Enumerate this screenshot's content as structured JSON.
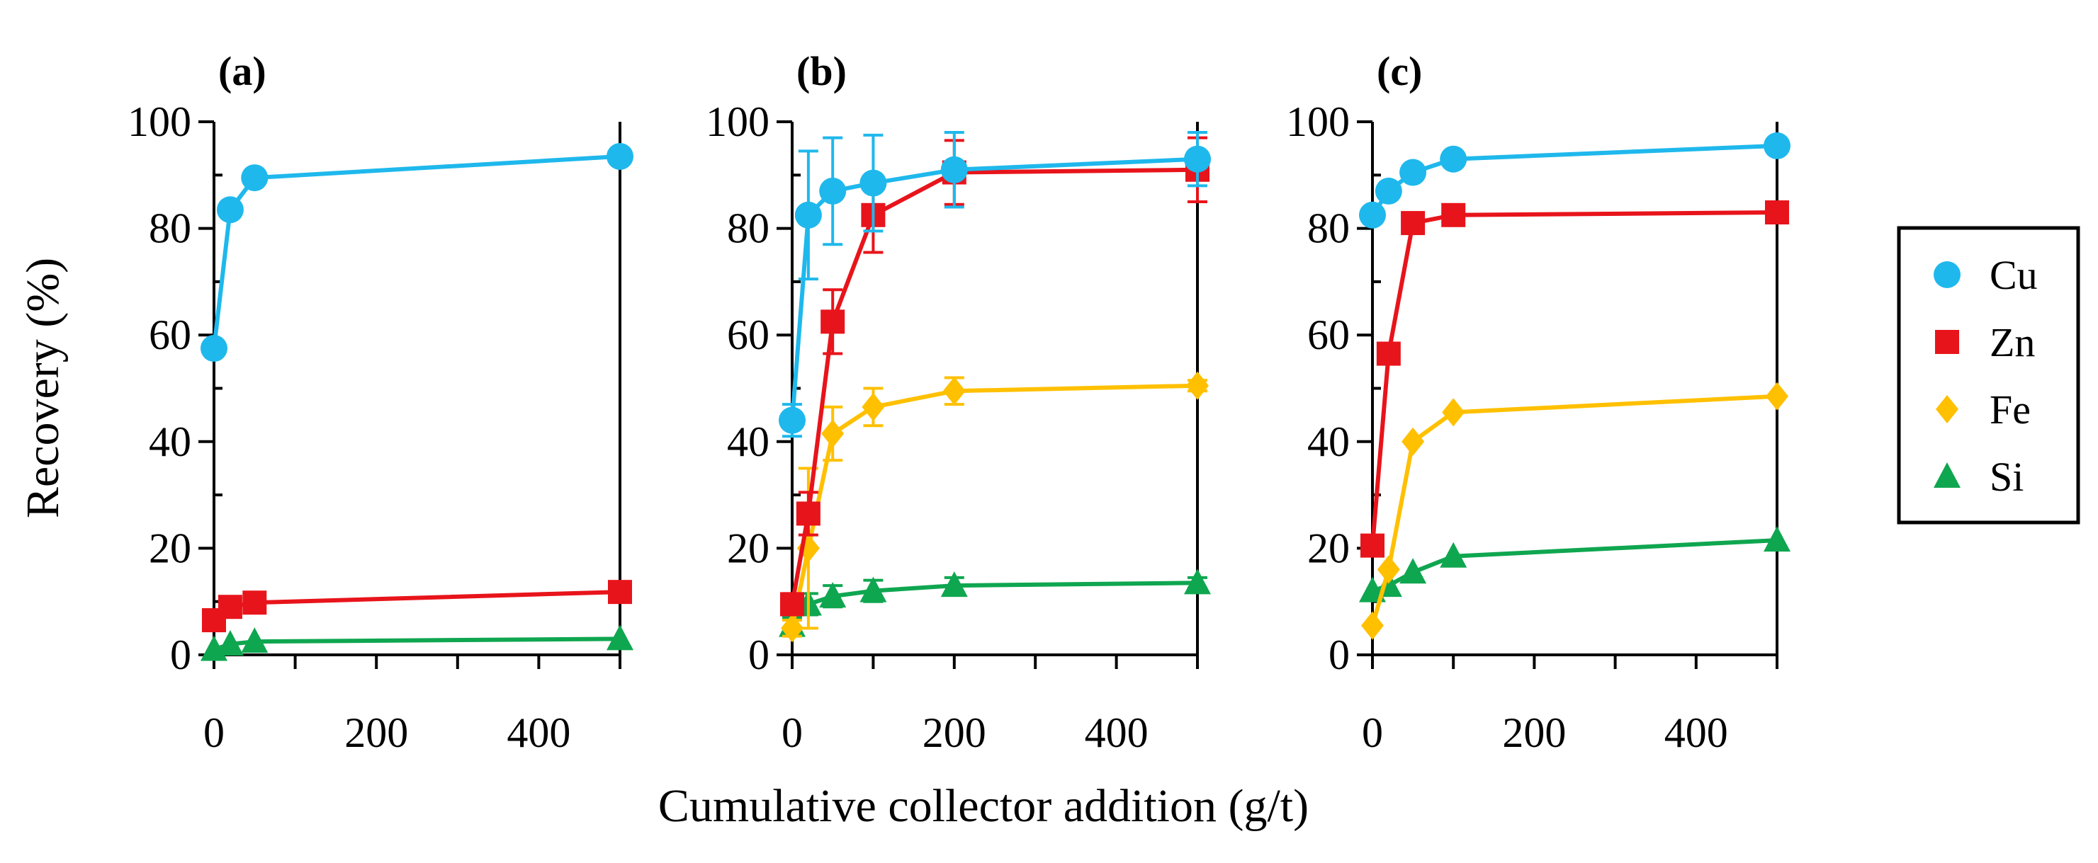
{
  "figure": {
    "ylabel": "Recovery (%)",
    "xlabel": "Cumulative collector addition (g/t)",
    "legend_location": "right",
    "legend": [
      {
        "name": "Cu",
        "marker": "circle",
        "color": "#1FB8EC"
      },
      {
        "name": "Zn",
        "marker": "square",
        "color": "#E8141B"
      },
      {
        "name": "Fe",
        "marker": "diamond",
        "color": "#FFC000"
      },
      {
        "name": "Si",
        "marker": "triangle",
        "color": "#0FA650"
      }
    ]
  },
  "chart_data": [
    {
      "type": "line",
      "title": "(a)",
      "xlabel": "Cumulative collector addition (g/t)",
      "ylabel": "Recovery (%)",
      "xlim": [
        0,
        500
      ],
      "ylim": [
        0,
        100
      ],
      "xticks": [
        0,
        200,
        400
      ],
      "yticks": [
        0,
        20,
        40,
        60,
        80,
        100
      ],
      "x": [
        0,
        20,
        50,
        500
      ],
      "series": [
        {
          "name": "Cu",
          "values": [
            57.5,
            83.5,
            89.5,
            93.5
          ]
        },
        {
          "name": "Zn",
          "values": [
            6.5,
            9.0,
            9.8,
            11.8
          ]
        },
        {
          "name": "Si",
          "values": [
            1.0,
            2.0,
            2.5,
            3.0
          ]
        }
      ]
    },
    {
      "type": "line",
      "title": "(b)",
      "xlabel": "Cumulative collector addition (g/t)",
      "ylabel": "Recovery (%)",
      "xlim": [
        0,
        500
      ],
      "ylim": [
        0,
        100
      ],
      "xticks": [
        0,
        200,
        400
      ],
      "yticks": [
        0,
        20,
        40,
        60,
        80,
        100
      ],
      "x": [
        0,
        20,
        50,
        100,
        200,
        500
      ],
      "series": [
        {
          "name": "Cu",
          "values": [
            44,
            82.5,
            87,
            88.5,
            91,
            93
          ],
          "errors": [
            3,
            12,
            10,
            9,
            7,
            5
          ]
        },
        {
          "name": "Zn",
          "values": [
            9.5,
            26.5,
            62.5,
            82.5,
            90.5,
            91
          ],
          "errors": [
            2,
            4,
            6,
            7,
            6,
            6
          ]
        },
        {
          "name": "Fe",
          "values": [
            5,
            20,
            41.5,
            46.5,
            49.5,
            50.5
          ],
          "errors": [
            1.5,
            15,
            5,
            3.5,
            2.5,
            1
          ]
        },
        {
          "name": "Si",
          "values": [
            5.5,
            9.5,
            11,
            12,
            13,
            13.5
          ],
          "errors": [
            1.5,
            2,
            2,
            2,
            1.5,
            1
          ]
        }
      ]
    },
    {
      "type": "line",
      "title": "(c)",
      "xlabel": "Cumulative collector addition (g/t)",
      "ylabel": "Recovery (%)",
      "xlim": [
        0,
        500
      ],
      "ylim": [
        0,
        100
      ],
      "xticks": [
        0,
        200,
        400
      ],
      "yticks": [
        0,
        20,
        40,
        60,
        80,
        100
      ],
      "x": [
        0,
        20,
        50,
        100,
        500
      ],
      "series": [
        {
          "name": "Cu",
          "values": [
            82.5,
            87,
            90.5,
            93,
            95.5
          ]
        },
        {
          "name": "Zn",
          "values": [
            20.5,
            56.5,
            81,
            82.5,
            83
          ]
        },
        {
          "name": "Fe",
          "values": [
            5.5,
            16,
            40,
            45.5,
            48.5
          ]
        },
        {
          "name": "Si",
          "values": [
            12,
            13,
            15.5,
            18.5,
            21.5
          ]
        }
      ]
    }
  ]
}
